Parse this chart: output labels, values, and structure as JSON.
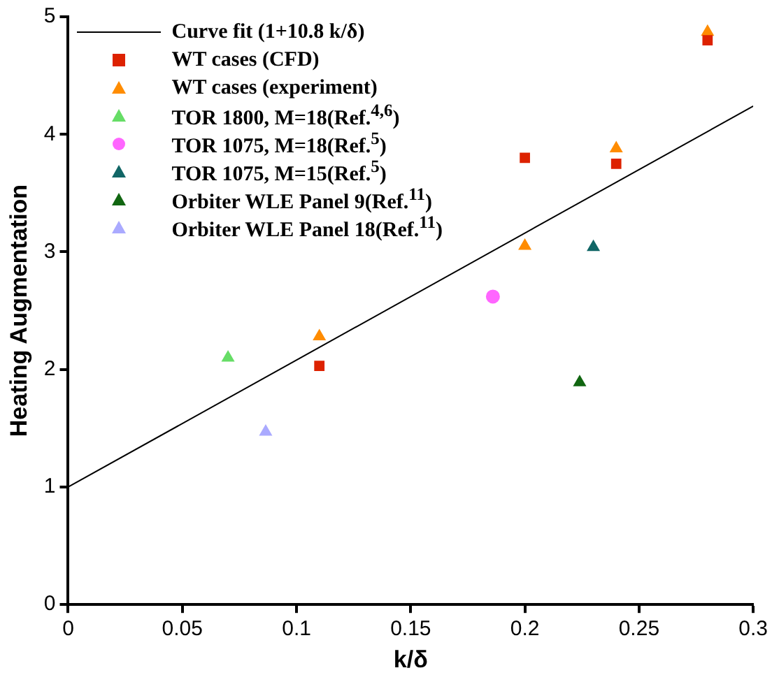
{
  "chart_data": {
    "type": "scatter",
    "xlabel": "k/δ",
    "ylabel": "Heating Augmentation",
    "xlim": [
      0,
      0.3
    ],
    "xticks": [
      0,
      0.05,
      0.1,
      0.15,
      0.2,
      0.25,
      0.3
    ],
    "ylim": [
      0,
      5
    ],
    "yticks": [
      0,
      1,
      2,
      3,
      4,
      5
    ],
    "grid": false,
    "legend": "top left",
    "series": [
      {
        "name": "Curve fit (1+10.8 k/δ)",
        "type": "line",
        "color": "#000000",
        "marker": "none",
        "line_style": "solid",
        "x": [
          0,
          0.3
        ],
        "values": [
          1,
          4.24
        ]
      },
      {
        "name": "WT cases (CFD)",
        "color": "#dd2200",
        "marker": "square",
        "x": [
          0.11,
          0.2,
          0.24,
          0.28
        ],
        "values": [
          2.03,
          3.8,
          3.75,
          4.8
        ]
      },
      {
        "name": "WT cases (experiment)",
        "color": "#ff8c00",
        "marker": "triangle",
        "x": [
          0.11,
          0.2,
          0.24,
          0.28
        ],
        "values": [
          2.28,
          3.05,
          3.88,
          4.87
        ]
      },
      {
        "name": "TOR 1800, M=18(Ref.$^{4,6}$)",
        "color": "#66dd66",
        "marker": "triangle",
        "x": [
          0.07
        ],
        "values": [
          2.1
        ]
      },
      {
        "name": "TOR 1075, M=18(Ref.$^{5}$)",
        "color": "#ff66ff",
        "marker": "circle",
        "x": [
          0.186
        ],
        "values": [
          2.62
        ]
      },
      {
        "name": "TOR 1075, M=15(Ref.$^{5}$)",
        "color": "#116666",
        "marker": "triangle",
        "x": [
          0.23
        ],
        "values": [
          3.04
        ]
      },
      {
        "name": "Orbiter WLE Panel 9(Ref.$^{11}$)",
        "color": "#116611",
        "marker": "triangle",
        "x": [
          0.224
        ],
        "values": [
          1.89
        ]
      },
      {
        "name": "Orbiter WLE Panel 18(Ref.$^{11}$)",
        "color": "#aaaaff",
        "marker": "triangle",
        "x": [
          0.0865
        ],
        "values": [
          1.47
        ]
      }
    ]
  }
}
